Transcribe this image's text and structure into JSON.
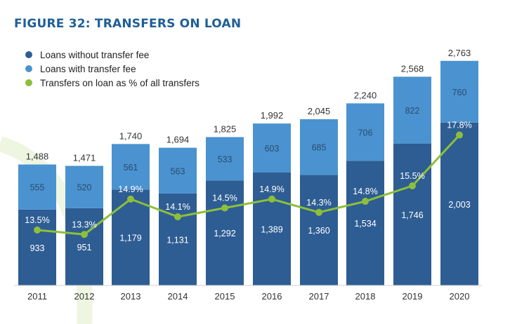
{
  "figure_title": "FIGURE 32: TRANSFERS ON LOAN",
  "legend": [
    {
      "label": "Loans without transfer fee",
      "color": "#2e5d93"
    },
    {
      "label": "Loans with transfer fee",
      "color": "#4a93d0"
    },
    {
      "label": "Transfers on loan as % of all transfers",
      "color": "#8dbf3a"
    }
  ],
  "chart_data": {
    "type": "bar",
    "stacked": true,
    "title": "FIGURE 32: TRANSFERS ON LOAN",
    "categories": [
      "2011",
      "2012",
      "2013",
      "2014",
      "2015",
      "2016",
      "2017",
      "2018",
      "2019",
      "2020"
    ],
    "series": [
      {
        "name": "Loans without transfer fee",
        "type": "bar",
        "color": "#2e5d93",
        "values": [
          933,
          951,
          1179,
          1131,
          1292,
          1389,
          1360,
          1534,
          1746,
          2003
        ]
      },
      {
        "name": "Loans with transfer fee",
        "type": "bar",
        "color": "#4a93d0",
        "values": [
          555,
          520,
          561,
          563,
          533,
          603,
          685,
          706,
          822,
          760
        ]
      },
      {
        "name": "Transfers on loan as % of all transfers",
        "type": "line",
        "color": "#8dbf3a",
        "values": [
          13.5,
          13.3,
          14.9,
          14.1,
          14.5,
          14.9,
          14.3,
          14.8,
          15.5,
          17.8
        ]
      }
    ],
    "totals": [
      "1,488",
      "1,471",
      "1,740",
      "1,694",
      "1,825",
      "1,992",
      "2,045",
      "2,240",
      "2,568",
      "2,763"
    ],
    "value_labels_without_fee": [
      "933",
      "951",
      "1,179",
      "1,131",
      "1,292",
      "1,389",
      "1,360",
      "1,534",
      "1,746",
      "2,003"
    ],
    "value_labels_with_fee": [
      "555",
      "520",
      "561",
      "563",
      "533",
      "603",
      "685",
      "706",
      "822",
      "760"
    ],
    "percent_labels": [
      "13.5%",
      "13.3%",
      "14.9%",
      "14.1%",
      "14.5%",
      "14.9%",
      "14.3%",
      "14.8%",
      "15.5%",
      "17.8%"
    ],
    "legend_position": "top-left",
    "grid": false
  }
}
